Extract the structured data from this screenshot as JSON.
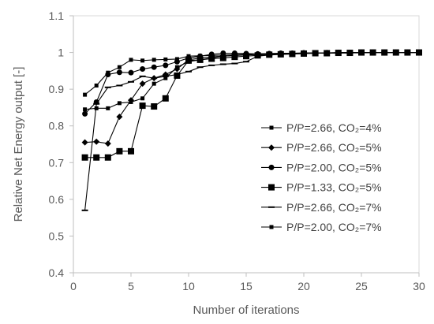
{
  "chart_data": {
    "type": "line",
    "xlabel": "Number of iterations",
    "ylabel": "Relative Net Energy output [-]",
    "xlim": [
      0,
      30
    ],
    "ylim": [
      0.4,
      1.1
    ],
    "xticks": [
      0,
      5,
      10,
      15,
      20,
      25,
      30
    ],
    "yticks": [
      0.4,
      0.5,
      0.6,
      0.7,
      0.8,
      0.9,
      1,
      1.1
    ],
    "xtick_labels": [
      "0",
      "5",
      "10",
      "15",
      "20",
      "25",
      "30"
    ],
    "ytick_labels": [
      "0.4",
      "0.5",
      "0.6",
      "0.7",
      "0.8",
      "0.9",
      "1",
      "1.1"
    ],
    "grid": false,
    "legend_position": "right",
    "line_color": "#000000",
    "axis_color": "#bfbfbf",
    "series": [
      {
        "name": "P/P=2.66, CO₂=4%",
        "marker": "small-square",
        "x": [
          1,
          2,
          3,
          4,
          5,
          6,
          7,
          8,
          9,
          10,
          11,
          12,
          13,
          14,
          15,
          16,
          17,
          18,
          19,
          20,
          21,
          22,
          23,
          24,
          25,
          26,
          27,
          28,
          29,
          30
        ],
        "values": [
          0.885,
          0.91,
          0.945,
          0.96,
          0.98,
          0.978,
          0.98,
          0.981,
          0.982,
          0.99,
          0.991,
          0.992,
          0.993,
          0.994,
          0.995,
          0.996,
          0.997,
          0.997,
          0.998,
          0.998,
          0.998,
          0.999,
          0.999,
          0.999,
          0.999,
          1.0,
          1.0,
          1.0,
          1.0,
          1.0
        ]
      },
      {
        "name": "P/P=2.66, CO₂=5%",
        "marker": "diamond",
        "x": [
          1,
          2,
          3,
          4,
          5,
          6,
          7,
          8,
          9,
          10,
          11,
          12,
          13,
          14,
          15,
          16,
          17,
          18,
          19,
          20,
          21,
          22,
          23,
          24,
          25,
          26,
          27,
          28,
          29,
          30
        ],
        "values": [
          0.755,
          0.757,
          0.752,
          0.825,
          0.87,
          0.915,
          0.93,
          0.94,
          0.955,
          0.98,
          0.985,
          0.988,
          0.99,
          0.992,
          0.993,
          0.995,
          0.996,
          0.997,
          0.997,
          0.998,
          0.998,
          0.999,
          0.999,
          0.999,
          1.0,
          1.0,
          1.0,
          1.0,
          1.0,
          1.0
        ]
      },
      {
        "name": "P/P=2.00, CO₂=5%",
        "marker": "circle",
        "x": [
          1,
          2,
          3,
          4,
          5,
          6,
          7,
          8,
          9,
          10,
          11,
          12,
          13,
          14,
          15,
          16,
          17,
          18,
          19,
          20,
          21,
          22,
          23,
          24,
          25,
          26,
          27,
          28,
          29,
          30
        ],
        "values": [
          0.833,
          0.865,
          0.94,
          0.946,
          0.945,
          0.955,
          0.96,
          0.965,
          0.975,
          0.985,
          0.99,
          0.995,
          0.998,
          0.998,
          0.997,
          0.996,
          0.997,
          0.998,
          0.998,
          0.999,
          0.999,
          0.999,
          1.0,
          1.0,
          1.0,
          1.0,
          1.0,
          1.0,
          1.0,
          1.0
        ]
      },
      {
        "name": "P/P=1.33, CO₂=5%",
        "marker": "square",
        "x": [
          1,
          2,
          3,
          4,
          5,
          6,
          7,
          8,
          9,
          10,
          11,
          12,
          13,
          14,
          15,
          16,
          17,
          18,
          19,
          20,
          21,
          22,
          23,
          24,
          25,
          26,
          27,
          28,
          29,
          30
        ],
        "values": [
          0.714,
          0.714,
          0.714,
          0.731,
          0.731,
          0.855,
          0.853,
          0.875,
          0.937,
          0.978,
          0.98,
          0.983,
          0.985,
          0.988,
          0.99,
          0.992,
          0.994,
          0.995,
          0.996,
          0.997,
          0.998,
          0.998,
          0.999,
          0.999,
          1.0,
          1.0,
          1.0,
          1.0,
          1.0,
          1.0
        ]
      },
      {
        "name": "P/P=2.66, CO₂=7%",
        "marker": "dash",
        "x": [
          1,
          2,
          3,
          4,
          5,
          6,
          7,
          8,
          9,
          10,
          11,
          12,
          13,
          14,
          15,
          16,
          17,
          18,
          19,
          20,
          21,
          22,
          23,
          24,
          25,
          26,
          27,
          28,
          29,
          30
        ],
        "values": [
          0.57,
          0.86,
          0.905,
          0.91,
          0.92,
          0.935,
          0.93,
          0.935,
          0.94,
          0.948,
          0.96,
          0.965,
          0.968,
          0.97,
          0.975,
          0.99,
          0.993,
          0.995,
          0.996,
          0.997,
          0.998,
          0.998,
          0.999,
          0.999,
          1.0,
          1.0,
          1.0,
          1.0,
          1.0,
          1.0
        ]
      },
      {
        "name": "P/P=2.00, CO₂=7%",
        "marker": "small-square",
        "x": [
          1,
          2,
          3,
          4,
          5,
          6,
          7,
          8,
          9,
          10,
          11,
          12,
          13,
          14,
          15,
          16,
          17,
          18,
          19,
          20,
          21,
          22,
          23,
          24,
          25,
          26,
          27,
          28,
          29,
          30
        ],
        "values": [
          0.845,
          0.848,
          0.848,
          0.862,
          0.865,
          0.875,
          0.915,
          0.93,
          0.96,
          0.975,
          0.98,
          0.985,
          0.99,
          0.992,
          0.994,
          0.995,
          0.996,
          0.997,
          0.998,
          0.998,
          0.998,
          0.999,
          0.999,
          0.999,
          1.0,
          1.0,
          1.0,
          1.0,
          1.0,
          1.0
        ]
      }
    ]
  }
}
